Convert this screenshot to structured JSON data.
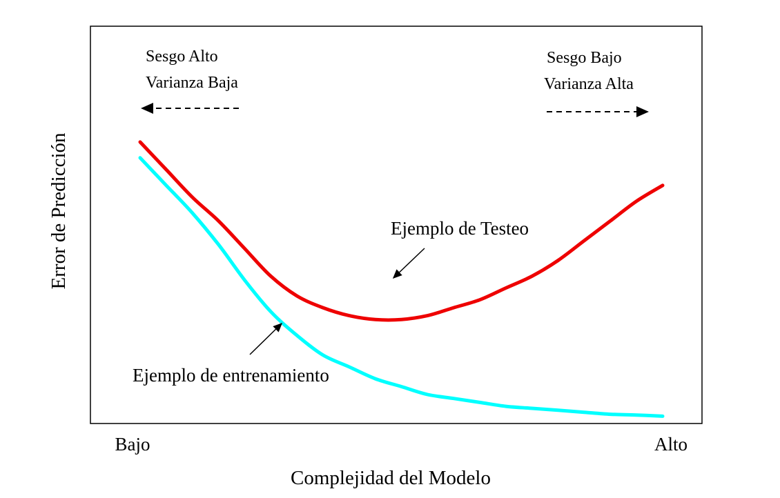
{
  "chart_data": {
    "type": "line",
    "title": "",
    "xlabel": "Complejidad del Modelo",
    "ylabel": "Error de Predicción",
    "x_tick_labels": [
      "Bajo",
      "Alto"
    ],
    "xlim": [
      0,
      1
    ],
    "ylim": [
      0,
      1
    ],
    "grid": false,
    "series": [
      {
        "name": "Ejemplo de Testeo",
        "color": "#ee0000",
        "x": [
          0.0,
          0.05,
          0.1,
          0.15,
          0.2,
          0.25,
          0.3,
          0.35,
          0.4,
          0.45,
          0.5,
          0.55,
          0.6,
          0.65,
          0.7,
          0.75,
          0.8,
          0.85,
          0.9,
          0.95,
          1.0
        ],
        "y": [
          0.71,
          0.64,
          0.57,
          0.51,
          0.44,
          0.37,
          0.32,
          0.29,
          0.27,
          0.26,
          0.26,
          0.27,
          0.29,
          0.31,
          0.34,
          0.37,
          0.41,
          0.46,
          0.51,
          0.56,
          0.6
        ]
      },
      {
        "name": "Ejemplo de entrenamiento",
        "color": "#00ffff",
        "x": [
          0.0,
          0.05,
          0.1,
          0.15,
          0.2,
          0.25,
          0.3,
          0.35,
          0.4,
          0.45,
          0.5,
          0.55,
          0.6,
          0.65,
          0.7,
          0.75,
          0.8,
          0.85,
          0.9,
          0.95,
          1.0
        ],
        "y": [
          0.67,
          0.6,
          0.53,
          0.45,
          0.36,
          0.28,
          0.22,
          0.17,
          0.14,
          0.11,
          0.09,
          0.07,
          0.06,
          0.05,
          0.04,
          0.035,
          0.03,
          0.025,
          0.02,
          0.018,
          0.015
        ]
      }
    ],
    "annotations": {
      "left_top": "Sesgo Alto",
      "left_bottom": "Varianza Baja",
      "right_top": "Sesgo Bajo",
      "right_bottom": "Varianza Alta"
    }
  }
}
